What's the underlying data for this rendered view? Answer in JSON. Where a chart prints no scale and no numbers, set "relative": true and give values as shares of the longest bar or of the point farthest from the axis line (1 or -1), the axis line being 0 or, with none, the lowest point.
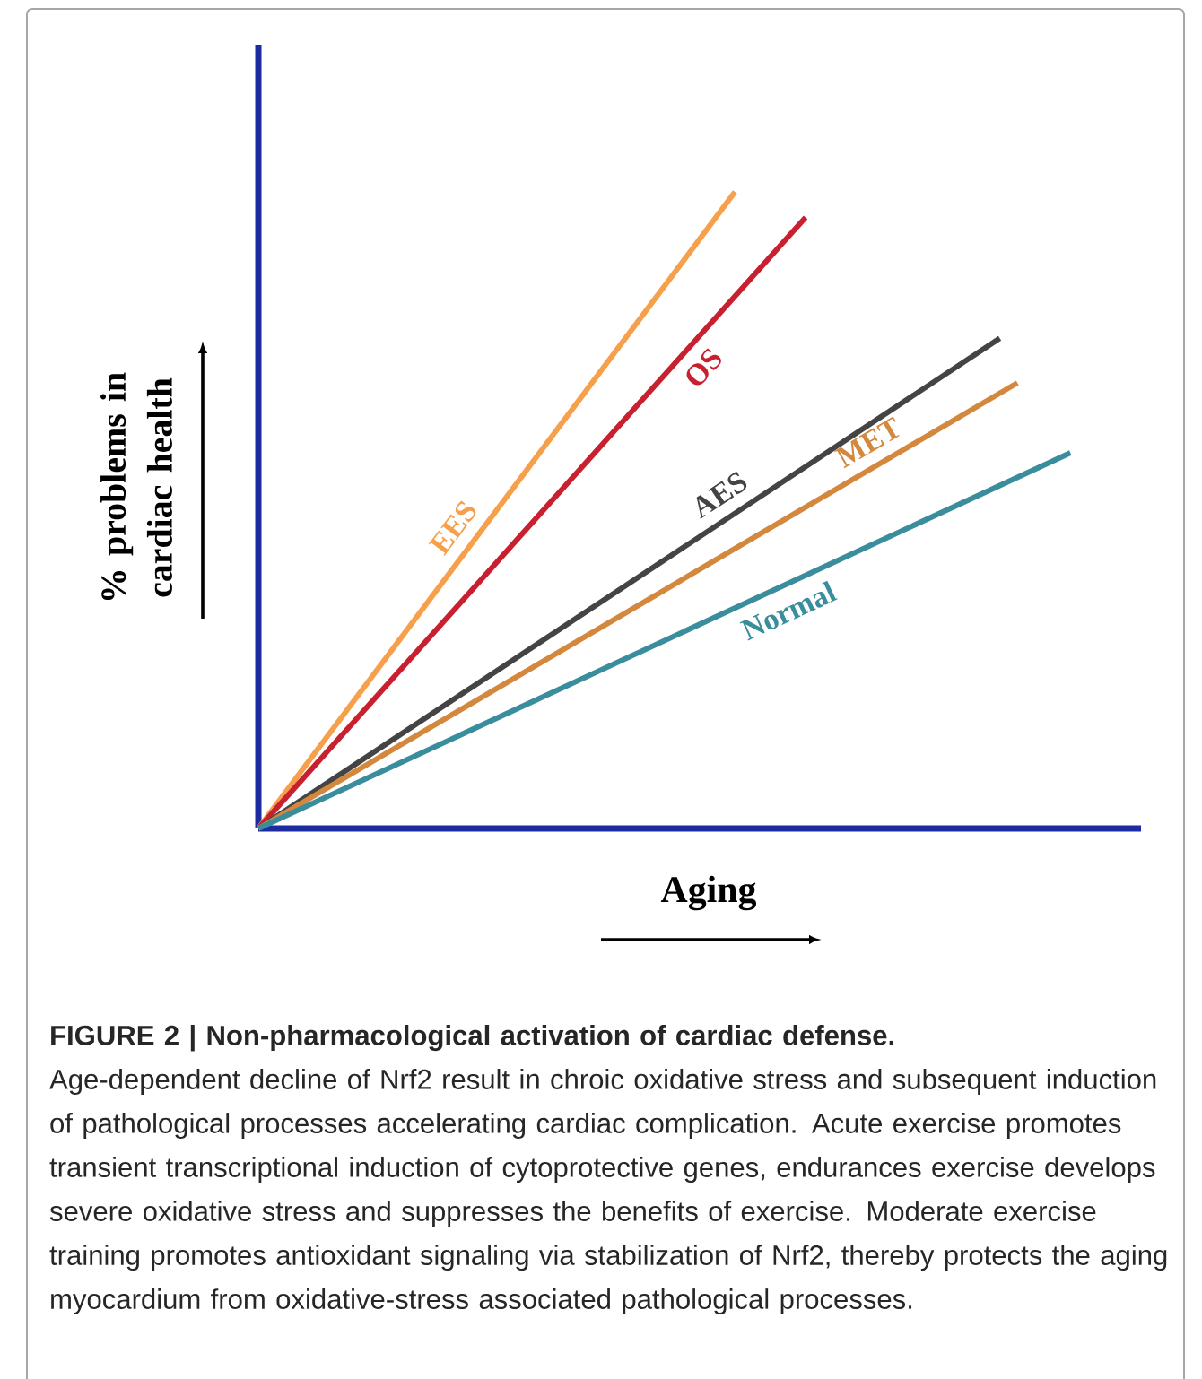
{
  "chart_data": {
    "type": "line",
    "relative": true,
    "xlabel": "Aging",
    "ylabel": "% problems in cardiac health",
    "title": "FIGURE 2 | Non-pharmacological activation of cardiac defense.",
    "annotations": [
      "Age-dependent decline of Nrf2 result in chroic oxidative stress and subsequent induction of pathological processes accelerating cardiac complication. Acute exercise promotes transient transcriptional induction of cytoprotective genes, endurances exercise develops severe oxidative stress and suppresses the benefits of exercise. Moderate exercise training promotes antioxidant signaling via stabilization of Nrf2, thereby protects the aging myocardium from oxidative-stress associated pathological processes."
    ],
    "marker": "none",
    "legend": false,
    "categories": [
      null,
      null,
      null,
      null,
      null,
      null,
      null,
      null,
      null,
      null,
      null,
      null,
      null,
      null,
      null,
      null,
      null,
      null,
      null,
      null,
      null,
      null,
      null,
      null,
      null,
      null,
      null,
      null,
      null,
      null,
      null,
      null,
      null,
      null,
      null,
      null,
      null,
      null,
      null,
      null,
      null,
      null,
      null,
      null,
      null,
      null,
      null,
      null,
      null,
      null,
      null
    ],
    "series": [
      {
        "name": "EES",
        "color": "#f7a04b",
        "values": [
          0,
          null,
          null,
          null,
          null,
          null,
          null,
          null,
          null,
          null,
          null,
          null,
          null,
          null,
          null,
          null,
          null,
          null,
          null,
          null,
          null,
          null,
          null,
          null,
          null,
          null,
          null,
          1,
          null,
          null,
          null,
          null,
          null,
          null,
          null,
          null,
          null,
          null,
          null,
          null,
          null,
          null,
          null,
          null,
          null,
          null,
          null,
          null,
          null,
          null,
          null
        ]
      },
      {
        "name": "OS",
        "color": "#c8202f",
        "values": [
          0,
          null,
          null,
          null,
          null,
          null,
          null,
          null,
          null,
          null,
          null,
          null,
          null,
          null,
          null,
          null,
          null,
          null,
          null,
          null,
          null,
          null,
          null,
          null,
          null,
          null,
          null,
          null,
          null,
          null,
          null,
          0.96,
          null,
          null,
          null,
          null,
          null,
          null,
          null,
          null,
          null,
          null,
          null,
          null,
          null,
          null,
          null,
          null,
          null,
          null,
          null
        ]
      },
      {
        "name": "AES",
        "color": "#444444",
        "values": [
          0,
          null,
          null,
          null,
          null,
          null,
          null,
          null,
          null,
          null,
          null,
          null,
          null,
          null,
          null,
          null,
          null,
          null,
          null,
          null,
          null,
          null,
          null,
          null,
          null,
          null,
          null,
          null,
          null,
          null,
          null,
          null,
          null,
          null,
          null,
          null,
          null,
          null,
          null,
          null,
          null,
          null,
          0.77,
          null,
          null,
          null,
          null,
          null,
          null,
          null,
          null
        ]
      },
      {
        "name": "MET",
        "color": "#d3883d",
        "values": [
          0,
          null,
          null,
          null,
          null,
          null,
          null,
          null,
          null,
          null,
          null,
          null,
          null,
          null,
          null,
          null,
          null,
          null,
          null,
          null,
          null,
          null,
          null,
          null,
          null,
          null,
          null,
          null,
          null,
          null,
          null,
          null,
          null,
          null,
          null,
          null,
          null,
          null,
          null,
          null,
          null,
          null,
          null,
          0.7,
          null,
          null,
          null,
          null,
          null,
          null,
          null
        ]
      },
      {
        "name": "Normal",
        "color": "#3a8d9c",
        "values": [
          0,
          null,
          null,
          null,
          null,
          null,
          null,
          null,
          null,
          null,
          null,
          null,
          null,
          null,
          null,
          null,
          null,
          null,
          null,
          null,
          null,
          null,
          null,
          null,
          null,
          null,
          null,
          null,
          null,
          null,
          null,
          null,
          null,
          null,
          null,
          null,
          null,
          null,
          null,
          null,
          null,
          null,
          null,
          null,
          null,
          null,
          0.59,
          null,
          null,
          null,
          null
        ]
      }
    ]
  }
}
